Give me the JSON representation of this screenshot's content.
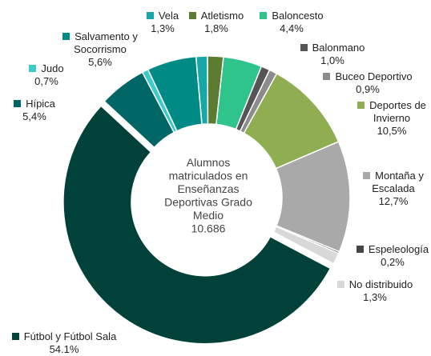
{
  "chart_data": {
    "type": "donut",
    "categories": [
      "Vela",
      "Atletismo",
      "Baloncesto",
      "Balonmano",
      "Buceo Deportivo",
      "Deportes de Invierno",
      "Montaña y Escalada",
      "Espeleología",
      "No distribuido",
      "Fútbol y Fútbol Sala",
      "Hípica",
      "Judo",
      "Salvamento y Socorrismo"
    ],
    "values": [
      1.3,
      1.8,
      4.4,
      1.0,
      0.9,
      10.5,
      12.7,
      0.2,
      1.3,
      54.1,
      5.4,
      0.7,
      5.6
    ],
    "value_labels": [
      "1,3%",
      "1,8%",
      "4,4%",
      "1,0%",
      "0,9%",
      "10,5%",
      "12,7%",
      "0,2%",
      "1,3%",
      "54.1%",
      "5,4%",
      "0,7%",
      "5,6%"
    ],
    "colors": [
      "#19a6a6",
      "#5b7b30",
      "#2fc48c",
      "#555555",
      "#8c8c8c",
      "#8fae52",
      "#a9a9a9",
      "#454545",
      "#d8d8d8",
      "#00423a",
      "#006565",
      "#3ccaca",
      "#008a86"
    ],
    "center_text": [
      "Alumnos",
      "matriculados en",
      "Enseñanzas",
      "Deportivas Grado",
      "Medio",
      "10.686"
    ]
  }
}
